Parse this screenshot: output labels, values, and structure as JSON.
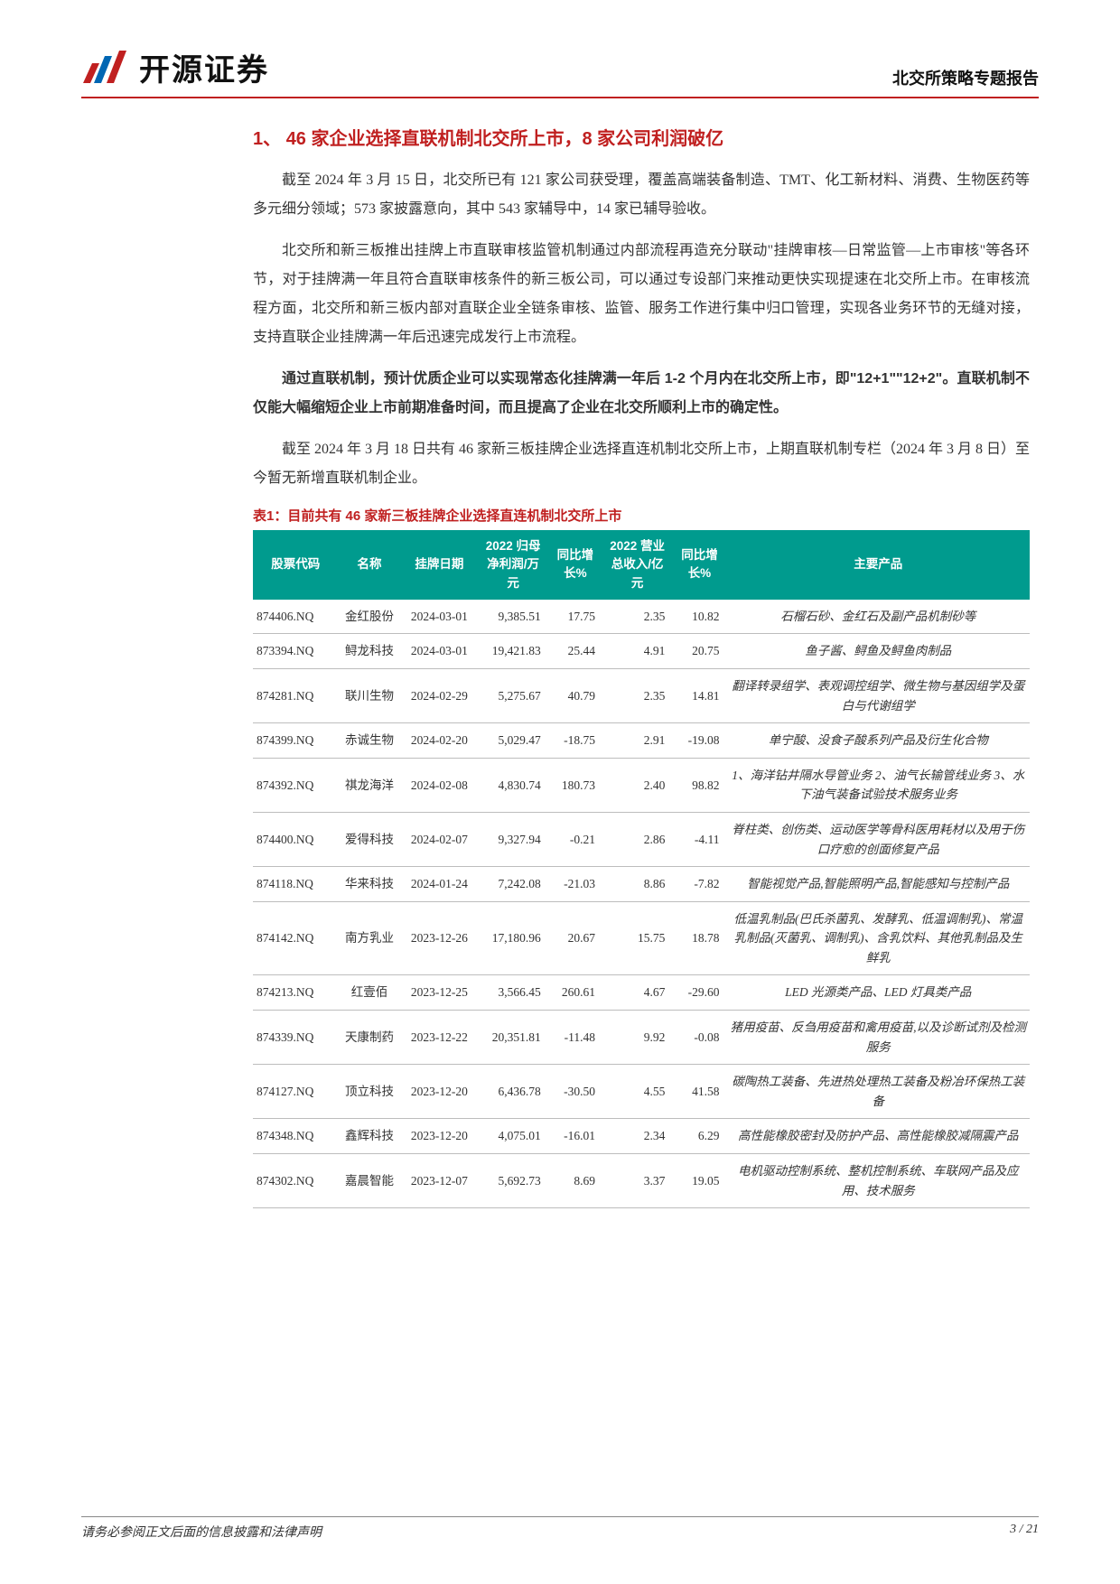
{
  "header": {
    "company_name": "开源证券",
    "report_type": "北交所策略专题报告"
  },
  "section": {
    "number": "1、",
    "title": "46 家企业选择直联机制北交所上市，8 家公司利润破亿"
  },
  "paragraphs": {
    "p1": "截至 2024 年 3 月 15 日，北交所已有 121 家公司获受理，覆盖高端装备制造、TMT、化工新材料、消费、生物医药等多元细分领域；573 家披露意向，其中 543 家辅导中，14 家已辅导验收。",
    "p2": "北交所和新三板推出挂牌上市直联审核监管机制通过内部流程再造充分联动\"挂牌审核—日常监管—上市审核\"等各环节，对于挂牌满一年且符合直联审核条件的新三板公司，可以通过专设部门来推动更快实现提速在北交所上市。在审核流程方面，北交所和新三板内部对直联企业全链条审核、监管、服务工作进行集中归口管理，实现各业务环节的无缝对接，支持直联企业挂牌满一年后迅速完成发行上市流程。",
    "p3_bold": "通过直联机制，预计优质企业可以实现常态化挂牌满一年后 1-2 个月内在北交所上市，即\"12+1\"\"12+2\"。直联机制不仅能大幅缩短企业上市前期准备时间，而且提高了企业在北交所顺利上市的确定性。",
    "p4": "截至 2024 年 3 月 18 日共有 46 家新三板挂牌企业选择直连机制北交所上市，上期直联机制专栏（2024 年 3 月 8 日）至今暂无新增直联机制企业。"
  },
  "table": {
    "title": "表1：目前共有 46 家新三板挂牌企业选择直连机制北交所上市",
    "headers": {
      "code": "股票代码",
      "name": "名称",
      "list_date": "挂牌日期",
      "net_profit": "2022 归母净利润/万元",
      "profit_yoy": "同比增长%",
      "revenue": "2022 营业总收入/亿元",
      "revenue_yoy": "同比增长%",
      "products": "主要产品"
    },
    "col_widths": {
      "code": "11%",
      "name": "8%",
      "list_date": "10%",
      "net_profit": "9%",
      "profit_yoy": "7%",
      "revenue": "9%",
      "revenue_yoy": "7%",
      "products": "39%"
    },
    "header_bg": "#009b8e",
    "header_fg": "#ffffff",
    "rows": [
      {
        "code": "874406.NQ",
        "name": "金红股份",
        "list_date": "2024-03-01",
        "net_profit": "9,385.51",
        "profit_yoy": "17.75",
        "revenue": "2.35",
        "revenue_yoy": "10.82",
        "products": "石榴石砂、金红石及副产品机制砂等"
      },
      {
        "code": "873394.NQ",
        "name": "鲟龙科技",
        "list_date": "2024-03-01",
        "net_profit": "19,421.83",
        "profit_yoy": "25.44",
        "revenue": "4.91",
        "revenue_yoy": "20.75",
        "products": "鱼子酱、鲟鱼及鲟鱼肉制品"
      },
      {
        "code": "874281.NQ",
        "name": "联川生物",
        "list_date": "2024-02-29",
        "net_profit": "5,275.67",
        "profit_yoy": "40.79",
        "revenue": "2.35",
        "revenue_yoy": "14.81",
        "products": "翻译转录组学、表观调控组学、微生物与基因组学及蛋白与代谢组学"
      },
      {
        "code": "874399.NQ",
        "name": "赤诚生物",
        "list_date": "2024-02-20",
        "net_profit": "5,029.47",
        "profit_yoy": "-18.75",
        "revenue": "2.91",
        "revenue_yoy": "-19.08",
        "products": "单宁酸、没食子酸系列产品及衍生化合物"
      },
      {
        "code": "874392.NQ",
        "name": "祺龙海洋",
        "list_date": "2024-02-08",
        "net_profit": "4,830.74",
        "profit_yoy": "180.73",
        "revenue": "2.40",
        "revenue_yoy": "98.82",
        "products": "1、海洋钻井隔水导管业务 2、油气长输管线业务 3、水下油气装备试验技术服务业务"
      },
      {
        "code": "874400.NQ",
        "name": "爱得科技",
        "list_date": "2024-02-07",
        "net_profit": "9,327.94",
        "profit_yoy": "-0.21",
        "revenue": "2.86",
        "revenue_yoy": "-4.11",
        "products": "脊柱类、创伤类、运动医学等骨科医用耗材以及用于伤口疗愈的创面修复产品"
      },
      {
        "code": "874118.NQ",
        "name": "华来科技",
        "list_date": "2024-01-24",
        "net_profit": "7,242.08",
        "profit_yoy": "-21.03",
        "revenue": "8.86",
        "revenue_yoy": "-7.82",
        "products": "智能视觉产品,智能照明产品,智能感知与控制产品"
      },
      {
        "code": "874142.NQ",
        "name": "南方乳业",
        "list_date": "2023-12-26",
        "net_profit": "17,180.96",
        "profit_yoy": "20.67",
        "revenue": "15.75",
        "revenue_yoy": "18.78",
        "products": "低温乳制品(巴氏杀菌乳、发酵乳、低温调制乳)、常温乳制品(灭菌乳、调制乳)、含乳饮料、其他乳制品及生鲜乳"
      },
      {
        "code": "874213.NQ",
        "name": "红壹佰",
        "list_date": "2023-12-25",
        "net_profit": "3,566.45",
        "profit_yoy": "260.61",
        "revenue": "4.67",
        "revenue_yoy": "-29.60",
        "products": "LED 光源类产品、LED 灯具类产品"
      },
      {
        "code": "874339.NQ",
        "name": "天康制药",
        "list_date": "2023-12-22",
        "net_profit": "20,351.81",
        "profit_yoy": "-11.48",
        "revenue": "9.92",
        "revenue_yoy": "-0.08",
        "products": "猪用疫苗、反刍用疫苗和禽用疫苗,以及诊断试剂及检测服务"
      },
      {
        "code": "874127.NQ",
        "name": "顶立科技",
        "list_date": "2023-12-20",
        "net_profit": "6,436.78",
        "profit_yoy": "-30.50",
        "revenue": "4.55",
        "revenue_yoy": "41.58",
        "products": "碳陶热工装备、先进热处理热工装备及粉冶环保热工装备"
      },
      {
        "code": "874348.NQ",
        "name": "鑫辉科技",
        "list_date": "2023-12-20",
        "net_profit": "4,075.01",
        "profit_yoy": "-16.01",
        "revenue": "2.34",
        "revenue_yoy": "6.29",
        "products": "高性能橡胶密封及防护产品、高性能橡胶减隔震产品"
      },
      {
        "code": "874302.NQ",
        "name": "嘉晨智能",
        "list_date": "2023-12-07",
        "net_profit": "5,692.73",
        "profit_yoy": "8.69",
        "revenue": "3.37",
        "revenue_yoy": "19.05",
        "products": "电机驱动控制系统、整机控制系统、车联网产品及应用、技术服务"
      }
    ]
  },
  "footer": {
    "disclaimer": "请务必参阅正文后面的信息披露和法律声明",
    "page": "3 / 21"
  },
  "colors": {
    "accent_red": "#c02020",
    "teal": "#009b8e",
    "text": "#333333",
    "rule": "#bdbdbd"
  }
}
